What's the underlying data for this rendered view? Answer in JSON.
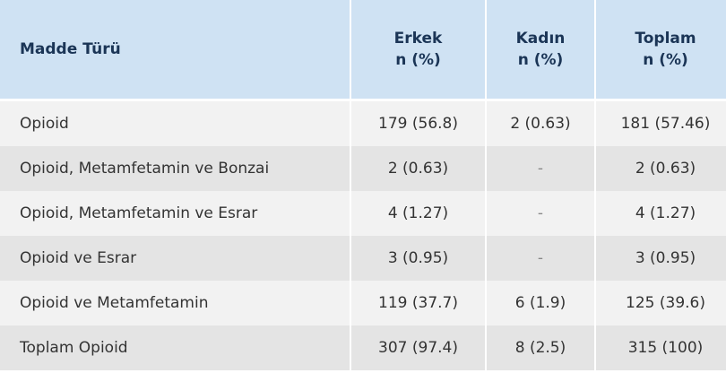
{
  "table": {
    "header": [
      [
        "Madde Türü"
      ],
      [
        "Erkek",
        "n (%)"
      ],
      [
        "Kadın",
        "n (%)"
      ],
      [
        "Toplam",
        "n (%)"
      ]
    ],
    "rows": [
      [
        "Opioid",
        "179 (56.8)",
        "2 (0.63)",
        "181 (57.46)"
      ],
      [
        "Opioid, Metamfetamin ve Bonzai",
        "2 (0.63)",
        "-",
        "2 (0.63)"
      ],
      [
        "Opioid, Metamfetamin ve Esrar",
        "4 (1.27)",
        "-",
        "4 (1.27)"
      ],
      [
        "Opioid ve Esrar",
        "3 (0.95)",
        "-",
        "3 (0.95)"
      ],
      [
        "Opioid ve Metamfetamin",
        "119 (37.7)",
        "6 (1.9)",
        "125 (39.6)"
      ],
      [
        "Toplam Opioid",
        "307 (97.4)",
        "8 (2.5)",
        "315 (100)"
      ]
    ]
  }
}
